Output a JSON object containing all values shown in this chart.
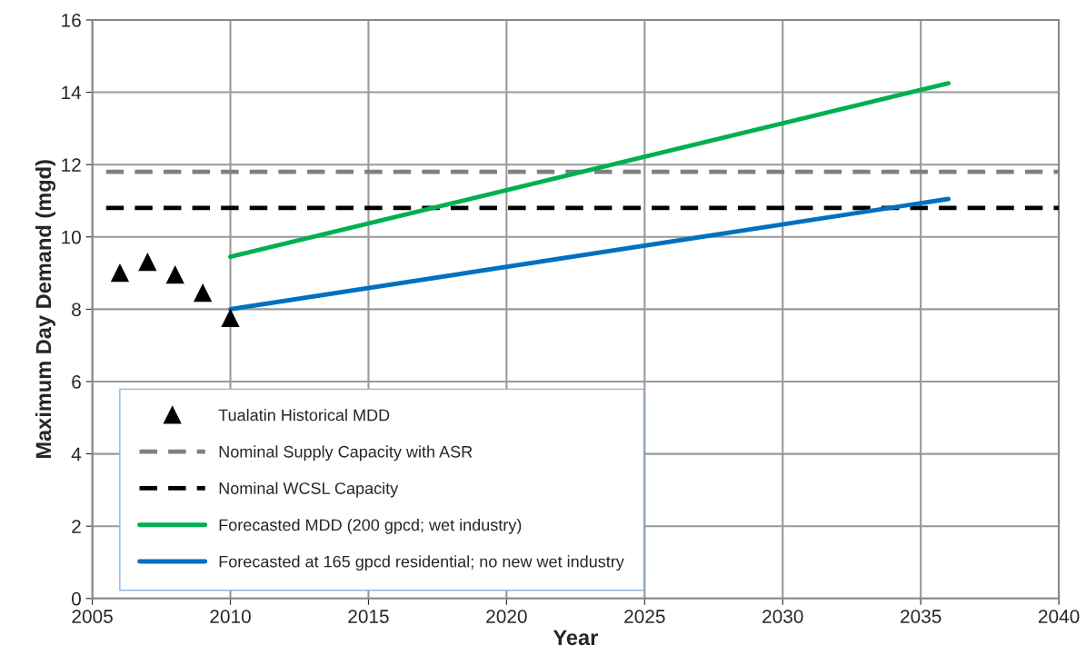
{
  "chart_data": {
    "type": "line",
    "xlabel": "Year",
    "ylabel": "Maximum Day Demand (mgd)",
    "xlim": [
      2005,
      2040
    ],
    "xticks": [
      2005,
      2010,
      2015,
      2020,
      2025,
      2030,
      2035,
      2040
    ],
    "ylim": [
      0,
      16
    ],
    "yticks": [
      0,
      2,
      4,
      6,
      8,
      10,
      12,
      14,
      16
    ],
    "grid": true,
    "legend": "bottom left",
    "series": [
      {
        "name": "Tualatin Historical MDD",
        "type": "scatter",
        "marker": "triangle",
        "color": "#000000",
        "x": [
          2006,
          2007,
          2008,
          2009,
          2010
        ],
        "values": [
          9.0,
          9.3,
          8.95,
          8.45,
          7.75
        ]
      },
      {
        "name": "Nominal Supply Capacity with ASR",
        "line_style": "dashed",
        "color": "#808080",
        "x": [
          2005.5,
          2040
        ],
        "values": [
          11.8,
          11.8
        ]
      },
      {
        "name": "Nominal WCSL Capacity",
        "line_style": "dashed",
        "color": "#000000",
        "x": [
          2005.5,
          2040
        ],
        "values": [
          10.8,
          10.8
        ]
      },
      {
        "name": "Forecasted MDD (200 gpcd; wet industry)",
        "line_style": "solid",
        "color": "#00b050",
        "x": [
          2010,
          2036
        ],
        "values": [
          9.45,
          14.25
        ]
      },
      {
        "name": "Forecasted at 165 gpcd residential; no new wet industry",
        "line_style": "solid",
        "color": "#0070c0",
        "x": [
          2010,
          2036
        ],
        "values": [
          8.0,
          11.05
        ]
      }
    ]
  }
}
